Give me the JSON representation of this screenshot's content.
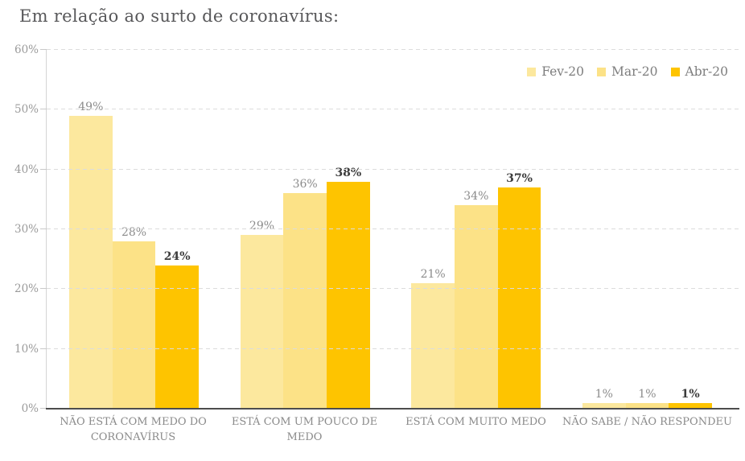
{
  "chart_data": {
    "type": "bar",
    "title": "Em relação ao surto de coronavírus:",
    "categories": [
      "NÃO ESTÁ COM MEDO DO CORONAVÍRUS",
      "ESTÁ COM UM POUCO DE MEDO",
      "ESTÁ COM MUITO MEDO",
      "NÃO SABE / NÃO RESPONDEU"
    ],
    "series": [
      {
        "name": "Fev-20",
        "color": "#FCE89E",
        "label_color": "#8C8C8C",
        "label_bold": false,
        "values": [
          49,
          29,
          21,
          1
        ]
      },
      {
        "name": "Mar-20",
        "color": "#FCE287",
        "label_color": "#8C8C8C",
        "label_bold": false,
        "values": [
          28,
          36,
          34,
          1
        ]
      },
      {
        "name": "Abr-20",
        "color": "#FEC400",
        "label_color": "#3C3C3C",
        "label_bold": true,
        "values": [
          24,
          38,
          37,
          1
        ]
      }
    ],
    "value_suffix": "%",
    "xlabel": "",
    "ylabel": "",
    "ylim": [
      0,
      60
    ],
    "y_ticks": [
      "0%",
      "10%",
      "20%",
      "30%",
      "40%",
      "50%",
      "60%"
    ],
    "grid": "horizontal-dashed",
    "legend_position": "top-right"
  },
  "colors": {
    "background": "#FFFFFF",
    "title_text": "#58585A",
    "y_axis_label": "#9B9B9B",
    "category_label": "#8A8A8A",
    "legend_text": "#7D7D7D",
    "gridline": "#DCDCDC",
    "y_axis_line": "#D4D4D4",
    "x_axis_line": "#4D4D4D"
  }
}
